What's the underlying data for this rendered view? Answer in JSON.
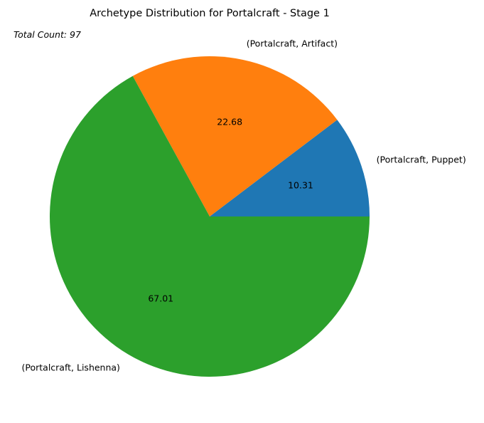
{
  "chart_data": {
    "type": "pie",
    "title": "Archetype Distribution for Portalcraft - Stage 1",
    "annotation": "Total Count: 97",
    "labels": [
      "(Portalcraft, Puppet)",
      "(Portalcraft, Artifact)",
      "(Portalcraft, Lishenna)"
    ],
    "values": [
      10.31,
      22.68,
      67.01
    ],
    "value_labels": [
      "10.31",
      "22.68",
      "67.01"
    ],
    "colors": [
      "#1f77b4",
      "#ff7f0e",
      "#2ca02c"
    ],
    "start_angle_deg": 0,
    "direction": "counterclockwise",
    "legend": "none"
  }
}
